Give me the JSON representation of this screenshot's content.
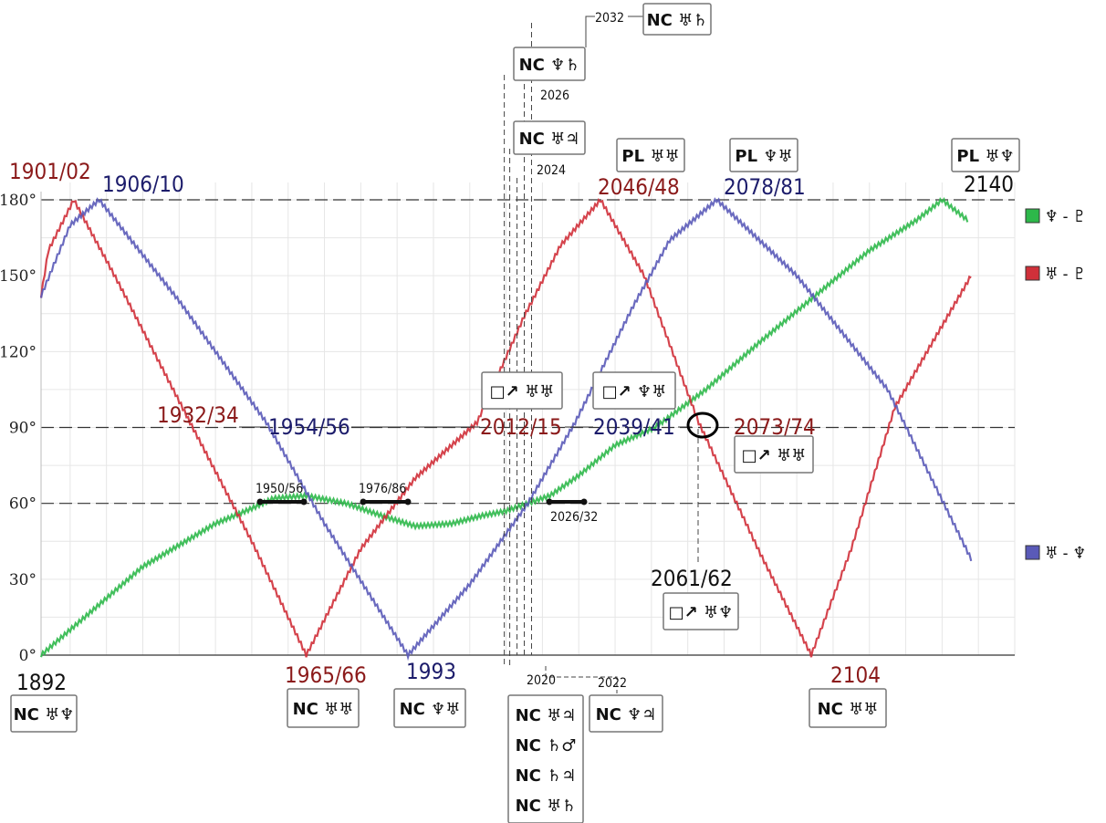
{
  "chart_data": {
    "type": "line",
    "x_range": [
      1892,
      2160
    ],
    "ylim": [
      0,
      180
    ],
    "yticks": [
      "0°",
      "30°",
      "60°",
      "90°",
      "120°",
      "150°",
      "180°"
    ],
    "reference_lines": [
      60,
      90,
      180
    ],
    "legend_position": "right",
    "series": [
      {
        "name": "♆ - ♇",
        "color": "#2db84a",
        "points": [
          [
            1892,
            0
          ],
          [
            1920,
            35
          ],
          [
            1940,
            52
          ],
          [
            1950,
            58
          ],
          [
            1956,
            62
          ],
          [
            1965,
            63
          ],
          [
            1976,
            60
          ],
          [
            1986,
            55
          ],
          [
            1995,
            51
          ],
          [
            2005,
            52
          ],
          [
            2013,
            55
          ],
          [
            2020,
            57
          ],
          [
            2026,
            60
          ],
          [
            2032,
            63
          ],
          [
            2040,
            71
          ],
          [
            2050,
            83
          ],
          [
            2061,
            90
          ],
          [
            2075,
            105
          ],
          [
            2090,
            124
          ],
          [
            2105,
            142
          ],
          [
            2120,
            160
          ],
          [
            2133,
            172
          ],
          [
            2140,
            180
          ],
          [
            2147,
            172
          ]
        ]
      },
      {
        "name": "♅ - ♇",
        "color": "#d0303a",
        "points": [
          [
            1892,
            142
          ],
          [
            1894,
            160
          ],
          [
            1901,
            180
          ],
          [
            1913,
            148
          ],
          [
            1933,
            92
          ],
          [
            1950,
            45
          ],
          [
            1965,
            0
          ],
          [
            1980,
            42
          ],
          [
            1995,
            70
          ],
          [
            2012,
            92
          ],
          [
            2025,
            134
          ],
          [
            2035,
            162
          ],
          [
            2046,
            180
          ],
          [
            2058,
            150
          ],
          [
            2073,
            92
          ],
          [
            2090,
            40
          ],
          [
            2104,
            0
          ],
          [
            2115,
            42
          ],
          [
            2127,
            98
          ],
          [
            2148,
            150
          ]
        ]
      },
      {
        "name": "♅ - ♆",
        "color": "#5a5ab8",
        "points": [
          [
            1892,
            142
          ],
          [
            1900,
            170
          ],
          [
            1908,
            180
          ],
          [
            1930,
            140
          ],
          [
            1954,
            92
          ],
          [
            1970,
            52
          ],
          [
            1993,
            0
          ],
          [
            2010,
            28
          ],
          [
            2026,
            60
          ],
          [
            2039,
            92
          ],
          [
            2055,
            138
          ],
          [
            2065,
            164
          ],
          [
            2078,
            180
          ],
          [
            2100,
            150
          ],
          [
            2125,
            105
          ],
          [
            2148,
            38
          ]
        ]
      }
    ],
    "annotations": {
      "red": [
        "1901/02",
        "1932/34",
        "1965/66",
        "2012/15",
        "2046/48",
        "2073/74",
        "2104"
      ],
      "blue": [
        "1906/10",
        "1954/56",
        "1993",
        "2039/41",
        "2078/81"
      ],
      "black": [
        "1892",
        "2140",
        "2061/62",
        "2032",
        "2026",
        "2024",
        "2020",
        "2022",
        "1950/56",
        "1976/86",
        "2026/32"
      ]
    },
    "aspect_boxes": {
      "nc_1892": "NC ♅♆",
      "nc_1965": "NC ♅♅",
      "nc_1993": "NC ♆♅",
      "nc_2104": "NC ♅♅",
      "pl_2046": "PL ♅♅",
      "pl_2078": "PL ♆♅",
      "pl_2140": "PL ♅♆",
      "sq_2012": "□↗ ♅♅",
      "sq_2039": "□↗ ♆♅",
      "sq_2073": "□↗ ♅♅",
      "sq_2061": "□↗ ♅♆",
      "nc_2026": "NC ♆♄",
      "nc_2024": "NC ♅♃",
      "nc_2032": "NC ♅♄",
      "nc_2022": "NC ♆♃",
      "nc_2020": [
        "NC ♅♃",
        "NC ♄♂",
        "NC ♄♃",
        "NC ♅♄"
      ]
    }
  }
}
